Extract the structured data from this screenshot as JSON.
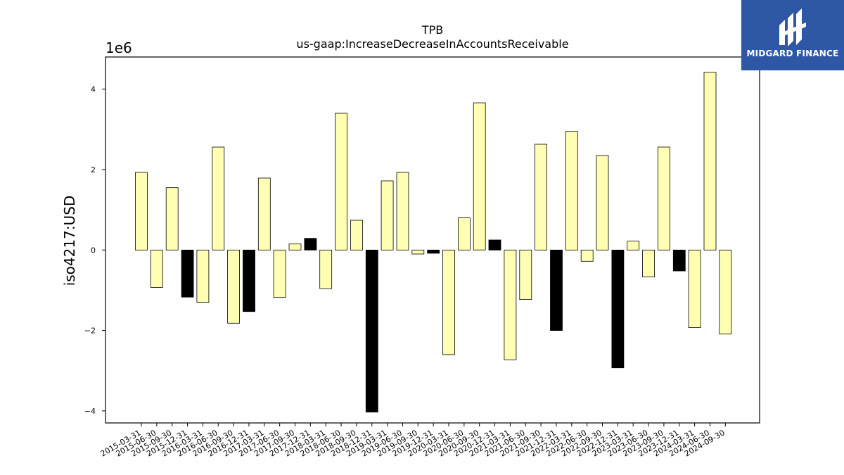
{
  "logo": {
    "name": "MIDGARD FINANCE",
    "icon": "midgard-logo-icon",
    "background": "#2e57a6"
  },
  "chart_data": {
    "type": "bar",
    "title": "TPB",
    "subtitle": "us-gaap:IncreaseDecreaseInAccountsReceivable",
    "xlabel": "",
    "ylabel": "iso4217:USD",
    "scale_label": "1e6",
    "ylim": [
      -4.3,
      4.8
    ],
    "yticks": [
      -4,
      -2,
      0,
      2,
      4
    ],
    "grid": false,
    "colors": {
      "default": "#ffffb3",
      "highlight": "#000000",
      "edge": "#000000"
    },
    "categories": [
      "2015-03-31",
      "2015-06-30",
      "2015-09-30",
      "2015-12-31",
      "2016-03-31",
      "2016-06-30",
      "2016-09-30",
      "2016-12-31",
      "2017-03-31",
      "2017-06-30",
      "2017-09-30",
      "2017-12-31",
      "2018-03-31",
      "2018-06-30",
      "2018-09-30",
      "2018-12-31",
      "2019-03-31",
      "2019-06-30",
      "2019-09-30",
      "2019-12-31",
      "2020-03-31",
      "2020-06-30",
      "2020-09-30",
      "2020-12-31",
      "2021-03-31",
      "2021-06-30",
      "2021-09-30",
      "2021-12-31",
      "2022-03-31",
      "2022-06-30",
      "2022-09-30",
      "2022-12-31",
      "2023-03-31",
      "2023-06-30",
      "2023-09-30",
      "2023-12-31",
      "2024-03-31",
      "2024-06-30",
      "2024-09-30"
    ],
    "values": [
      1.93,
      -0.93,
      1.55,
      -1.17,
      -1.3,
      2.56,
      -1.82,
      -1.53,
      1.79,
      -1.18,
      0.15,
      0.29,
      -0.96,
      3.4,
      0.74,
      -4.03,
      1.72,
      1.93,
      -0.1,
      -0.08,
      -2.6,
      0.8,
      3.66,
      0.25,
      -2.73,
      -1.23,
      2.63,
      -2.0,
      2.95,
      -0.28,
      2.35,
      -2.93,
      0.22,
      -0.67,
      2.56,
      -0.52,
      -1.93,
      4.42,
      -2.09
    ],
    "highlighted_categories": [
      "2015-12-31",
      "2016-12-31",
      "2017-12-31",
      "2018-12-31",
      "2019-12-31",
      "2020-12-31",
      "2021-12-31",
      "2022-12-31",
      "2023-12-31"
    ]
  }
}
